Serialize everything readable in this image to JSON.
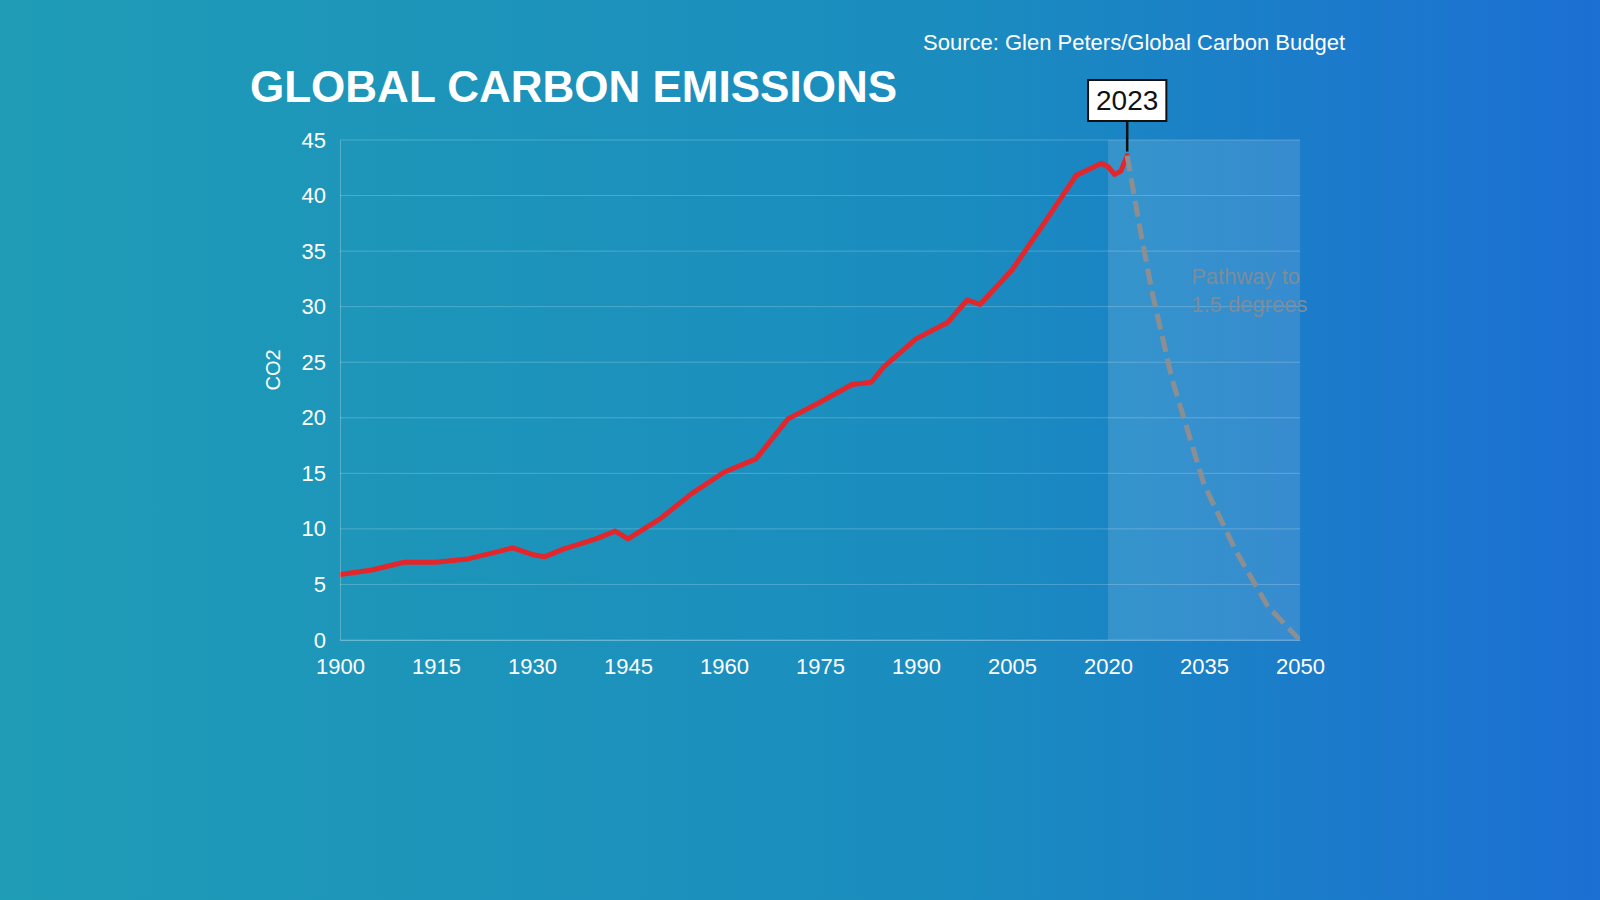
{
  "chart_data": {
    "type": "line",
    "title": "GLOBAL CARBON EMISSIONS",
    "subtitle": "Source: Glen Peters/Global Carbon Budget",
    "y_label": "CO2",
    "xlim": [
      1900,
      2050
    ],
    "xticks": [
      1900,
      1915,
      1930,
      1945,
      1960,
      1975,
      1990,
      2005,
      2020,
      2035,
      2050
    ],
    "ylim": [
      0,
      45
    ],
    "yticks": [
      0,
      5,
      10,
      15,
      20,
      25,
      30,
      35,
      40,
      45
    ],
    "grid": true,
    "highlight_range": [
      2020,
      2050
    ],
    "series": [
      {
        "color": "#e3262b",
        "line_style": "solid",
        "x": [
          1900,
          1905,
          1910,
          1915,
          1920,
          1925,
          1927,
          1930,
          1932,
          1935,
          1940,
          1943,
          1945,
          1950,
          1955,
          1960,
          1965,
          1970,
          1975,
          1980,
          1983,
          1985,
          1990,
          1995,
          1998,
          2000,
          2005,
          2010,
          2015,
          2019,
          2020,
          2021,
          2022,
          2023
        ],
        "values": [
          5.9,
          6.3,
          7.0,
          7.0,
          7.3,
          8.0,
          8.3,
          7.7,
          7.5,
          8.2,
          9.1,
          9.8,
          9.1,
          10.9,
          13.2,
          15.1,
          16.3,
          19.9,
          21.4,
          23.0,
          23.2,
          24.6,
          27.1,
          28.6,
          30.6,
          30.2,
          33.3,
          37.5,
          41.8,
          42.9,
          42.6,
          41.9,
          42.2,
          43.6
        ]
      },
      {
        "color": "#8c8f92",
        "line_style": "dashed",
        "x": [
          2023,
          2025,
          2027,
          2030,
          2035,
          2040,
          2045,
          2050
        ],
        "values": [
          43.6,
          37,
          31,
          23.5,
          14,
          8,
          3,
          0
        ]
      }
    ],
    "annotations": [
      {
        "text": "2023",
        "x": 2023
      },
      {
        "text": "Pathway to 1.5 degrees",
        "x": 2033,
        "y": 32
      }
    ]
  }
}
